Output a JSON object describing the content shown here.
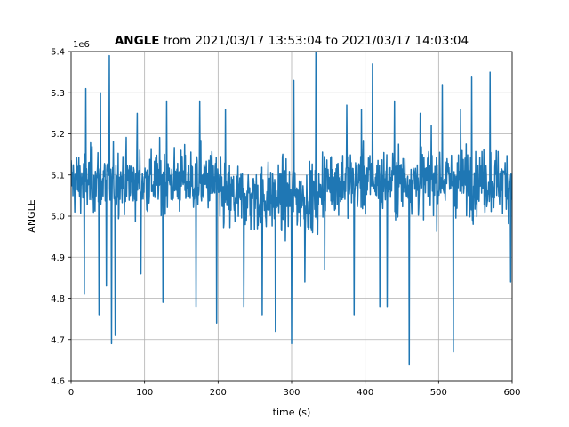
{
  "chart_data": {
    "type": "line",
    "title_bold": "ANGLE",
    "title_rest": " from 2021/03/17 13:53:04 to 2021/03/17 14:03:04",
    "xlabel": "time (s)",
    "ylabel": "ANGLE",
    "y_offset_label": "1e6",
    "xlim": [
      0,
      600
    ],
    "ylim": [
      4.6,
      5.4
    ],
    "xticks": [
      0,
      100,
      200,
      300,
      400,
      500,
      600
    ],
    "yticks": [
      4.6,
      4.7,
      4.8,
      4.9,
      5.0,
      5.1,
      5.2,
      5.3,
      5.4
    ],
    "xtick_labels": [
      "0",
      "100",
      "200",
      "300",
      "400",
      "500",
      "600"
    ],
    "ytick_labels": [
      "4.6",
      "4.7",
      "4.8",
      "4.9",
      "5.0",
      "5.1",
      "5.2",
      "5.3",
      "5.4"
    ],
    "grid": true,
    "line_color": "#1f77b4",
    "series": [
      {
        "x_step": 0.5,
        "x_start": 0,
        "values_summary": "noisy signal around 5.07 (x1e6), mostly between 4.95 and 5.2; notable spikes at t~20 (5.31), t~40 (5.30), t~52 (5.39), t~55 (4.69), t~333 (5.40), t~460 (4.64), t~520 (4.67)",
        "spikes": [
          [
            20,
            5.31
          ],
          [
            18,
            4.81
          ],
          [
            38,
            4.76
          ],
          [
            40,
            5.3
          ],
          [
            48,
            4.83
          ],
          [
            52,
            5.39
          ],
          [
            55,
            4.69
          ],
          [
            60,
            4.71
          ],
          [
            90,
            5.25
          ],
          [
            95,
            4.86
          ],
          [
            125,
            4.79
          ],
          [
            130,
            5.28
          ],
          [
            170,
            4.78
          ],
          [
            175,
            5.28
          ],
          [
            198,
            4.74
          ],
          [
            210,
            5.26
          ],
          [
            235,
            4.78
          ],
          [
            260,
            4.76
          ],
          [
            278,
            4.72
          ],
          [
            300,
            4.69
          ],
          [
            303,
            5.33
          ],
          [
            318,
            4.84
          ],
          [
            333,
            5.4
          ],
          [
            345,
            4.87
          ],
          [
            375,
            5.27
          ],
          [
            385,
            4.76
          ],
          [
            395,
            5.26
          ],
          [
            410,
            5.37
          ],
          [
            420,
            4.78
          ],
          [
            430,
            4.78
          ],
          [
            440,
            5.28
          ],
          [
            460,
            4.64
          ],
          [
            475,
            5.25
          ],
          [
            490,
            5.22
          ],
          [
            505,
            5.32
          ],
          [
            520,
            4.67
          ],
          [
            530,
            5.26
          ],
          [
            545,
            5.34
          ],
          [
            570,
            5.35
          ],
          [
            598,
            4.84
          ]
        ]
      }
    ]
  }
}
